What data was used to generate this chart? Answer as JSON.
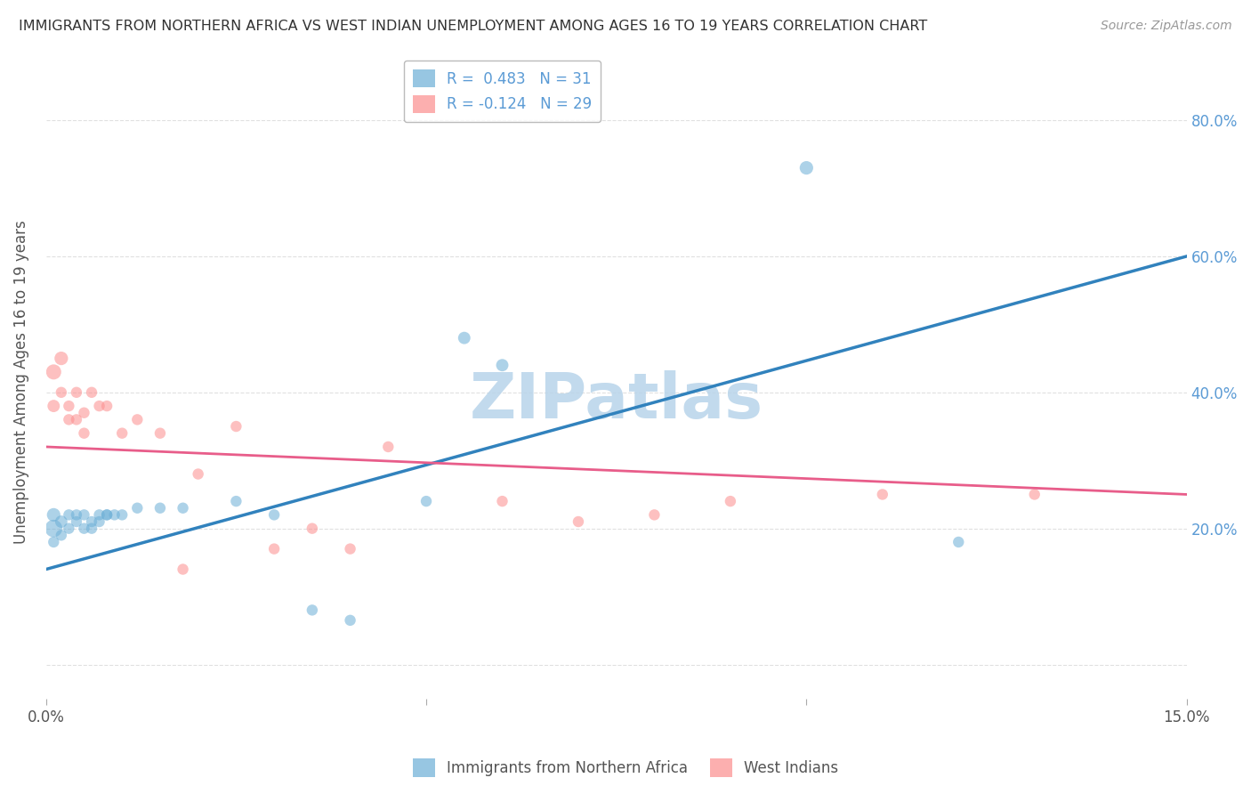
{
  "title": "IMMIGRANTS FROM NORTHERN AFRICA VS WEST INDIAN UNEMPLOYMENT AMONG AGES 16 TO 19 YEARS CORRELATION CHART",
  "source": "Source: ZipAtlas.com",
  "ylabel": "Unemployment Among Ages 16 to 19 years",
  "xlim": [
    0.0,
    0.15
  ],
  "ylim": [
    -0.05,
    0.88
  ],
  "yticks": [
    0.0,
    0.2,
    0.4,
    0.6,
    0.8
  ],
  "ytick_labels": [
    "",
    "20.0%",
    "40.0%",
    "60.0%",
    "80.0%"
  ],
  "blue_R": 0.483,
  "blue_N": 31,
  "pink_R": -0.124,
  "pink_N": 29,
  "blue_color": "#6baed6",
  "pink_color": "#fc8d8d",
  "blue_line_color": "#3182bd",
  "pink_line_color": "#e85d8a",
  "blue_scatter": [
    [
      0.001,
      0.2
    ],
    [
      0.001,
      0.22
    ],
    [
      0.001,
      0.18
    ],
    [
      0.002,
      0.21
    ],
    [
      0.002,
      0.19
    ],
    [
      0.003,
      0.2
    ],
    [
      0.003,
      0.22
    ],
    [
      0.004,
      0.21
    ],
    [
      0.004,
      0.22
    ],
    [
      0.005,
      0.2
    ],
    [
      0.005,
      0.22
    ],
    [
      0.006,
      0.21
    ],
    [
      0.006,
      0.2
    ],
    [
      0.007,
      0.22
    ],
    [
      0.007,
      0.21
    ],
    [
      0.008,
      0.22
    ],
    [
      0.008,
      0.22
    ],
    [
      0.009,
      0.22
    ],
    [
      0.01,
      0.22
    ],
    [
      0.012,
      0.23
    ],
    [
      0.015,
      0.23
    ],
    [
      0.018,
      0.23
    ],
    [
      0.025,
      0.24
    ],
    [
      0.03,
      0.22
    ],
    [
      0.035,
      0.08
    ],
    [
      0.04,
      0.065
    ],
    [
      0.05,
      0.24
    ],
    [
      0.055,
      0.48
    ],
    [
      0.06,
      0.44
    ],
    [
      0.1,
      0.73
    ],
    [
      0.12,
      0.18
    ]
  ],
  "pink_scatter": [
    [
      0.001,
      0.43
    ],
    [
      0.001,
      0.38
    ],
    [
      0.002,
      0.45
    ],
    [
      0.002,
      0.4
    ],
    [
      0.003,
      0.38
    ],
    [
      0.003,
      0.36
    ],
    [
      0.004,
      0.4
    ],
    [
      0.004,
      0.36
    ],
    [
      0.005,
      0.37
    ],
    [
      0.005,
      0.34
    ],
    [
      0.006,
      0.4
    ],
    [
      0.007,
      0.38
    ],
    [
      0.008,
      0.38
    ],
    [
      0.01,
      0.34
    ],
    [
      0.012,
      0.36
    ],
    [
      0.015,
      0.34
    ],
    [
      0.018,
      0.14
    ],
    [
      0.02,
      0.28
    ],
    [
      0.025,
      0.35
    ],
    [
      0.03,
      0.17
    ],
    [
      0.035,
      0.2
    ],
    [
      0.04,
      0.17
    ],
    [
      0.045,
      0.32
    ],
    [
      0.06,
      0.24
    ],
    [
      0.07,
      0.21
    ],
    [
      0.08,
      0.22
    ],
    [
      0.09,
      0.24
    ],
    [
      0.11,
      0.25
    ],
    [
      0.13,
      0.25
    ]
  ],
  "blue_sizes": [
    200,
    120,
    80,
    100,
    80,
    80,
    80,
    80,
    80,
    80,
    80,
    80,
    80,
    80,
    80,
    80,
    80,
    80,
    80,
    80,
    80,
    80,
    80,
    80,
    80,
    80,
    80,
    100,
    100,
    120,
    80
  ],
  "pink_sizes": [
    150,
    100,
    120,
    80,
    80,
    80,
    80,
    80,
    80,
    80,
    80,
    80,
    80,
    80,
    80,
    80,
    80,
    80,
    80,
    80,
    80,
    80,
    80,
    80,
    80,
    80,
    80,
    80,
    80
  ],
  "blue_trendline": [
    0.0,
    0.15,
    0.14,
    0.6
  ],
  "pink_trendline": [
    0.0,
    0.15,
    0.32,
    0.25
  ],
  "watermark_text": "ZIPatlas",
  "watermark_color": "#b8d4ea",
  "background_color": "#ffffff",
  "grid_color": "#cccccc"
}
